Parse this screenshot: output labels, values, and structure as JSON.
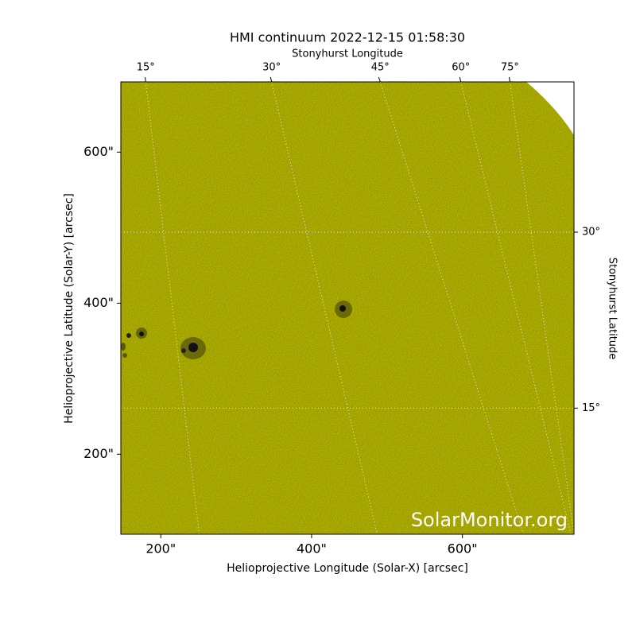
{
  "chart_data": {
    "type": "image",
    "title": "HMI continuum 2022-12-15 01:58:30",
    "x_label": "Helioprojective Longitude (Solar-X) [arcsec]",
    "y_label": "Helioprojective Latitude (Solar-Y) [arcsec]",
    "top_label": "Stonyhurst Longitude",
    "right_label": "Stonyhurst Latitude",
    "watermark": "SolarMonitor.org",
    "color": "#c8c800",
    "xlim": [
      147,
      748
    ],
    "ylim": [
      94,
      693
    ],
    "xticks": [
      {
        "value": 200,
        "label": "200\""
      },
      {
        "value": 400,
        "label": "400\""
      },
      {
        "value": 600,
        "label": "600\""
      }
    ],
    "yticks": [
      {
        "value": 200,
        "label": "200\""
      },
      {
        "value": 400,
        "label": "400\""
      },
      {
        "value": 600,
        "label": "600\""
      }
    ],
    "lon_lines": [
      {
        "value": 15,
        "label": "15°",
        "top": 180,
        "bottom": 251
      },
      {
        "value": 30,
        "label": "30°",
        "top": 347,
        "bottom": 487
      },
      {
        "value": 45,
        "label": "45°",
        "top": 491,
        "bottom": 681
      },
      {
        "value": 60,
        "label": "60°",
        "top": 598,
        "bottom": 744
      },
      {
        "value": 75,
        "label": "75°",
        "top": 663,
        "bottom": 748
      }
    ],
    "lat_lines": [
      {
        "value": 30,
        "label": "30°",
        "y": 494
      },
      {
        "value": 15,
        "label": "15°",
        "y": 261
      }
    ]
  }
}
